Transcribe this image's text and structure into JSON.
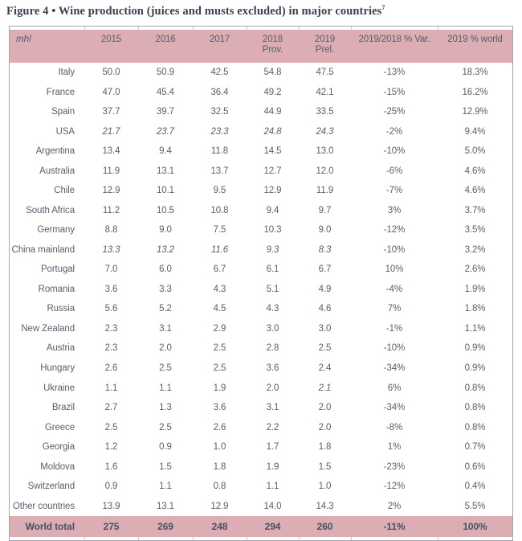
{
  "title": {
    "text": "Figure 4 • Wine production (juices and musts excluded) in major countries",
    "footnote_marker": "7"
  },
  "table": {
    "unit_label": "mhl",
    "columns": [
      {
        "label": "2015",
        "sub": ""
      },
      {
        "label": "2016",
        "sub": ""
      },
      {
        "label": "2017",
        "sub": ""
      },
      {
        "label": "2018",
        "sub": "Prov."
      },
      {
        "label": "2019",
        "sub": "Prel."
      },
      {
        "label": "2019/2018 % Var.",
        "sub": ""
      },
      {
        "label": "2019 % world",
        "sub": ""
      }
    ],
    "rows": [
      {
        "country": "Italy",
        "values": [
          "50.0",
          "50.9",
          "42.5",
          "54.8",
          "47.5",
          "-13%",
          "18.3%"
        ],
        "italic_cols": []
      },
      {
        "country": "France",
        "values": [
          "47.0",
          "45.4",
          "36.4",
          "49.2",
          "42.1",
          "-15%",
          "16.2%"
        ],
        "italic_cols": []
      },
      {
        "country": "Spain",
        "values": [
          "37.7",
          "39.7",
          "32.5",
          "44.9",
          "33.5",
          "-25%",
          "12.9%"
        ],
        "italic_cols": []
      },
      {
        "country": "USA",
        "values": [
          "21.7",
          "23.7",
          "23.3",
          "24.8",
          "24.3",
          "-2%",
          "9.4%"
        ],
        "italic_cols": [
          0,
          1,
          2,
          3,
          4
        ]
      },
      {
        "country": "Argentina",
        "values": [
          "13.4",
          "9.4",
          "11.8",
          "14.5",
          "13.0",
          "-10%",
          "5.0%"
        ],
        "italic_cols": []
      },
      {
        "country": "Australia",
        "values": [
          "11.9",
          "13.1",
          "13.7",
          "12.7",
          "12.0",
          "-6%",
          "4.6%"
        ],
        "italic_cols": []
      },
      {
        "country": "Chile",
        "values": [
          "12.9",
          "10.1",
          "9.5",
          "12.9",
          "11.9",
          "-7%",
          "4.6%"
        ],
        "italic_cols": []
      },
      {
        "country": "South Africa",
        "values": [
          "11.2",
          "10.5",
          "10.8",
          "9.4",
          "9.7",
          "3%",
          "3.7%"
        ],
        "italic_cols": []
      },
      {
        "country": "Germany",
        "values": [
          "8.8",
          "9.0",
          "7.5",
          "10.3",
          "9.0",
          "-12%",
          "3.5%"
        ],
        "italic_cols": []
      },
      {
        "country": "China mainland",
        "values": [
          "13.3",
          "13.2",
          "11.6",
          "9.3",
          "8.3",
          "-10%",
          "3.2%"
        ],
        "italic_cols": [
          0,
          1,
          2,
          3,
          4
        ]
      },
      {
        "country": "Portugal",
        "values": [
          "7.0",
          "6.0",
          "6.7",
          "6.1",
          "6.7",
          "10%",
          "2.6%"
        ],
        "italic_cols": []
      },
      {
        "country": "Romania",
        "values": [
          "3.6",
          "3.3",
          "4.3",
          "5.1",
          "4.9",
          "-4%",
          "1.9%"
        ],
        "italic_cols": []
      },
      {
        "country": "Russia",
        "values": [
          "5.6",
          "5.2",
          "4.5",
          "4.3",
          "4.6",
          "7%",
          "1.8%"
        ],
        "italic_cols": []
      },
      {
        "country": "New Zealand",
        "values": [
          "2.3",
          "3.1",
          "2.9",
          "3.0",
          "3.0",
          "-1%",
          "1.1%"
        ],
        "italic_cols": []
      },
      {
        "country": "Austria",
        "values": [
          "2.3",
          "2.0",
          "2.5",
          "2.8",
          "2.5",
          "-10%",
          "0.9%"
        ],
        "italic_cols": []
      },
      {
        "country": "Hungary",
        "values": [
          "2.6",
          "2.5",
          "2.5",
          "3.6",
          "2.4",
          "-34%",
          "0.9%"
        ],
        "italic_cols": []
      },
      {
        "country": "Ukraine",
        "values": [
          "1.1",
          "1.1",
          "1.9",
          "2.0",
          "2.1",
          "6%",
          "0.8%"
        ],
        "italic_cols": [
          4
        ]
      },
      {
        "country": "Brazil",
        "values": [
          "2.7",
          "1.3",
          "3.6",
          "3.1",
          "2.0",
          "-34%",
          "0.8%"
        ],
        "italic_cols": []
      },
      {
        "country": "Greece",
        "values": [
          "2.5",
          "2.5",
          "2.6",
          "2.2",
          "2.0",
          "-8%",
          "0.8%"
        ],
        "italic_cols": []
      },
      {
        "country": "Georgia",
        "values": [
          "1.2",
          "0.9",
          "1.0",
          "1.7",
          "1.8",
          "1%",
          "0.7%"
        ],
        "italic_cols": []
      },
      {
        "country": "Moldova",
        "values": [
          "1.6",
          "1.5",
          "1.8",
          "1.9",
          "1.5",
          "-23%",
          "0.6%"
        ],
        "italic_cols": []
      },
      {
        "country": "Switzerland",
        "values": [
          "0.9",
          "1.1",
          "0.8",
          "1.1",
          "1.0",
          "-12%",
          "0.4%"
        ],
        "italic_cols": []
      },
      {
        "country": "Other countries",
        "values": [
          "13.9",
          "13.1",
          "12.9",
          "14.0",
          "14.3",
          "2%",
          "5.5%"
        ],
        "italic_cols": []
      }
    ],
    "total_row": {
      "country": "World total",
      "values": [
        "275",
        "269",
        "248",
        "294",
        "260",
        "-11%",
        "100%"
      ]
    }
  },
  "colors": {
    "header_bg": "#dcadb3",
    "text": "#57616e",
    "title_text": "#38414d",
    "border": "#a0a6ad"
  }
}
